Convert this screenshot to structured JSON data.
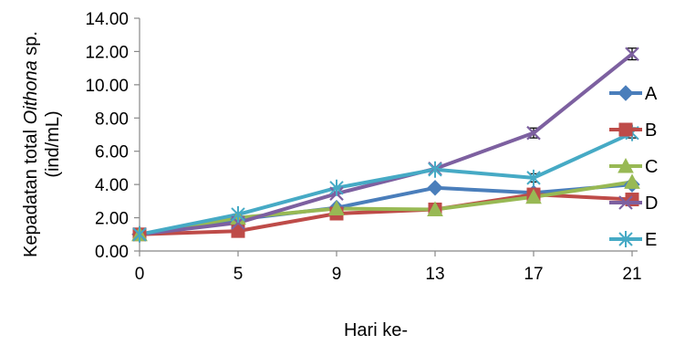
{
  "chart_data": {
    "type": "line",
    "x": [
      "0",
      "5",
      "9",
      "13",
      "17",
      "21"
    ],
    "xlabel": "Hari ke-",
    "ylabel": {
      "line1_pre": "Kepadatan total ",
      "line1_species": "Oithona",
      "line1_post": " sp.",
      "line2": "(ind/mL)"
    },
    "ylim": [
      0,
      14
    ],
    "yticks": [
      "0.00",
      "2.00",
      "4.00",
      "6.00",
      "8.00",
      "10.00",
      "12.00",
      "14.00"
    ],
    "grid": false,
    "legend_position": "right",
    "series": [
      {
        "name": "A",
        "color": "#4a7ebb",
        "marker": "diamond",
        "values": [
          1.0,
          1.9,
          2.6,
          3.8,
          3.5,
          4.0
        ]
      },
      {
        "name": "B",
        "color": "#be4b48",
        "marker": "square",
        "values": [
          1.0,
          1.2,
          2.25,
          2.5,
          3.4,
          3.1
        ]
      },
      {
        "name": "C",
        "color": "#98b954",
        "marker": "triangle",
        "values": [
          1.0,
          2.0,
          2.55,
          2.5,
          3.25,
          4.15
        ]
      },
      {
        "name": "D",
        "color": "#7d60a0",
        "marker": "x",
        "values": [
          1.0,
          1.7,
          3.45,
          4.95,
          7.1,
          11.85
        ],
        "error": [
          0.05,
          0.05,
          0.1,
          0.1,
          0.3,
          0.35
        ]
      },
      {
        "name": "E",
        "color": "#46aac5",
        "marker": "star",
        "values": [
          1.0,
          2.2,
          3.8,
          4.9,
          4.4,
          7.1
        ],
        "error": [
          0.05,
          0.05,
          0.1,
          0.1,
          0.25,
          0.3
        ]
      }
    ]
  }
}
